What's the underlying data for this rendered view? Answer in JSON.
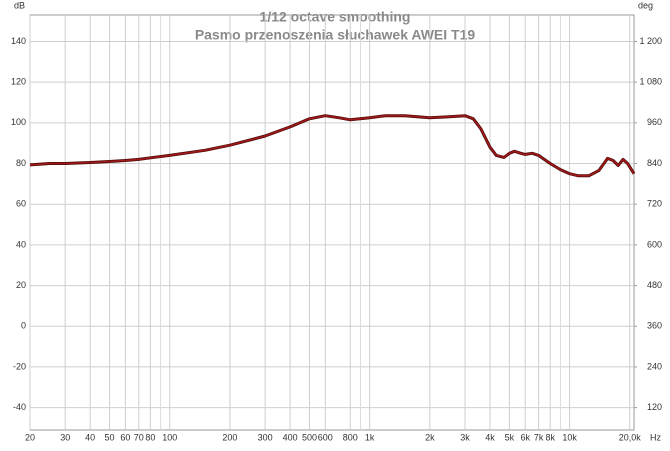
{
  "chart_data": {
    "type": "line",
    "title": "1/12 octave smoothing",
    "subtitle": "Pasmo przenoszenia słuchawek AWEI T19",
    "y_label": "dB",
    "y2_label": "deg",
    "x_label": "Hz",
    "log_x": true,
    "grid": true,
    "x": [
      20,
      25,
      30,
      40,
      50,
      60,
      70,
      80,
      100,
      150,
      200,
      300,
      400,
      500,
      600,
      700,
      800,
      1000,
      1200,
      1500,
      2000,
      2500,
      3000,
      3300,
      3600,
      4000,
      4300,
      4700,
      5000,
      5300,
      5700,
      6000,
      6500,
      7000,
      8000,
      9000,
      10000,
      11000,
      12500,
      14000,
      15500,
      16500,
      17500,
      18500,
      19500,
      21000
    ],
    "series": [
      {
        "name": "AWEI T19",
        "color": "#a01818",
        "values": [
          79.3,
          80,
          80,
          80.5,
          81,
          81.5,
          82,
          82.8,
          84,
          86.5,
          89,
          93.5,
          98,
          102,
          103.5,
          102.5,
          101.5,
          102.5,
          103.5,
          103.5,
          102.5,
          103,
          103.5,
          102,
          97,
          88,
          84,
          83,
          85,
          86,
          85,
          84.5,
          85,
          84,
          80,
          77,
          75,
          74,
          74,
          76.5,
          82.5,
          81.5,
          79,
          82,
          80,
          75
        ]
      }
    ],
    "xlim": [
      20,
      21000
    ],
    "xticks": [
      20,
      30,
      40,
      50,
      60,
      70,
      80,
      100,
      200,
      300,
      400,
      500,
      600,
      800,
      {
        "value": 1000,
        "label": "1k"
      },
      {
        "value": 2000,
        "label": "2k"
      },
      {
        "value": 3000,
        "label": "3k"
      },
      {
        "value": 4000,
        "label": "4k"
      },
      {
        "value": 5000,
        "label": "5k"
      },
      {
        "value": 6000,
        "label": "6k"
      },
      {
        "value": 7000,
        "label": "7k"
      },
      {
        "value": 8000,
        "label": "8k"
      },
      {
        "value": 10000,
        "label": "10k"
      },
      {
        "value": 20000,
        "label": "20,0k"
      }
    ],
    "minor_xticks": [
      90,
      900,
      9000
    ],
    "ylim": [
      -51,
      153
    ],
    "yticks": [
      -40,
      -20,
      0,
      20,
      40,
      60,
      80,
      100,
      120,
      140
    ],
    "y2lim": [
      54,
      1278
    ],
    "y2ticks": [
      120,
      240,
      360,
      480,
      600,
      720,
      840,
      960,
      {
        "value": 1080,
        "label": "1 080"
      },
      {
        "value": 1200,
        "label": "1 200"
      }
    ]
  }
}
